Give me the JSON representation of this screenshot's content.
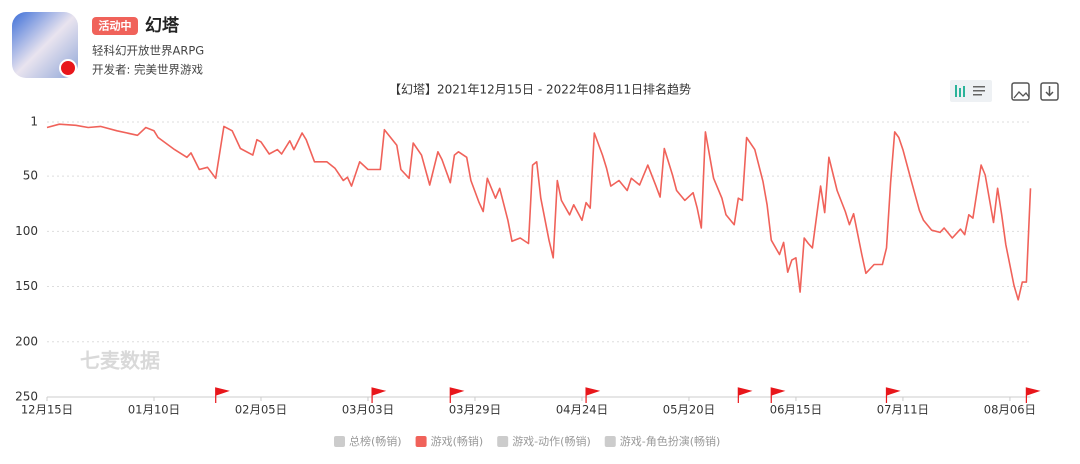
{
  "app": {
    "badge": "活动中",
    "name": "幻塔",
    "tagline": "轻科幻开放世界ARPG",
    "developer": "开发者: 完美世界游戏"
  },
  "watermark": "七麦数据",
  "chart_data": {
    "type": "line",
    "title": "【幻塔】2021年12月15日 - 2022年08月11日排名趋势",
    "x": [
      "2021-12-15",
      "2021-12-18",
      "2021-12-22",
      "2021-12-25",
      "2021-12-28",
      "2022-01-01",
      "2022-01-06",
      "2022-01-08",
      "2022-01-10",
      "2022-01-11",
      "2022-01-15",
      "2022-01-18",
      "2022-01-19",
      "2022-01-21",
      "2022-01-23",
      "2022-01-25",
      "2022-01-27",
      "2022-01-29",
      "2022-01-31",
      "2022-02-03",
      "2022-02-04",
      "2022-02-05",
      "2022-02-07",
      "2022-02-09",
      "2022-02-10",
      "2022-02-12",
      "2022-02-13",
      "2022-02-15",
      "2022-02-16",
      "2022-02-18",
      "2022-02-21",
      "2022-02-23",
      "2022-02-25",
      "2022-02-26",
      "2022-02-27",
      "2022-03-01",
      "2022-03-03",
      "2022-03-06",
      "2022-03-07",
      "2022-03-10",
      "2022-03-11",
      "2022-03-13",
      "2022-03-14",
      "2022-03-16",
      "2022-03-18",
      "2022-03-20",
      "2022-03-21",
      "2022-03-23",
      "2022-03-24",
      "2022-03-25",
      "2022-03-27",
      "2022-03-28",
      "2022-03-30",
      "2022-03-31",
      "2022-04-01",
      "2022-04-03",
      "2022-04-04",
      "2022-04-06",
      "2022-04-07",
      "2022-04-09",
      "2022-04-11",
      "2022-04-12",
      "2022-04-13",
      "2022-04-14",
      "2022-04-16",
      "2022-04-17",
      "2022-04-18",
      "2022-04-19",
      "2022-04-21",
      "2022-04-22",
      "2022-04-24",
      "2022-04-25",
      "2022-04-26",
      "2022-04-27",
      "2022-04-29",
      "2022-04-30",
      "2022-05-01",
      "2022-05-03",
      "2022-05-05",
      "2022-05-06",
      "2022-05-08",
      "2022-05-10",
      "2022-05-12",
      "2022-05-13",
      "2022-05-14",
      "2022-05-16",
      "2022-05-17",
      "2022-05-19",
      "2022-05-21",
      "2022-05-22",
      "2022-05-23",
      "2022-05-24",
      "2022-05-26",
      "2022-05-28",
      "2022-05-29",
      "2022-05-31",
      "2022-06-01",
      "2022-06-02",
      "2022-06-03",
      "2022-06-05",
      "2022-06-07",
      "2022-06-08",
      "2022-06-09",
      "2022-06-11",
      "2022-06-12",
      "2022-06-13",
      "2022-06-14",
      "2022-06-15",
      "2022-06-16",
      "2022-06-17",
      "2022-06-18",
      "2022-06-19",
      "2022-06-21",
      "2022-06-22",
      "2022-06-23",
      "2022-06-25",
      "2022-06-27",
      "2022-06-28",
      "2022-06-29",
      "2022-07-01",
      "2022-07-02",
      "2022-07-04",
      "2022-07-06",
      "2022-07-07",
      "2022-07-08",
      "2022-07-09",
      "2022-07-10",
      "2022-07-11",
      "2022-07-13",
      "2022-07-15",
      "2022-07-16",
      "2022-07-18",
      "2022-07-20",
      "2022-07-21",
      "2022-07-23",
      "2022-07-25",
      "2022-07-26",
      "2022-07-27",
      "2022-07-28",
      "2022-07-30",
      "2022-07-31",
      "2022-08-02",
      "2022-08-03",
      "2022-08-04",
      "2022-08-05",
      "2022-08-07",
      "2022-08-08",
      "2022-08-09",
      "2022-08-10",
      "2022-08-11"
    ],
    "series": [
      {
        "name": "游戏(畅销)",
        "color": "#f0625a",
        "values": [
          6,
          3,
          4,
          6,
          5,
          9,
          13,
          6,
          9,
          15,
          26,
          33,
          29,
          44,
          42,
          52,
          5,
          9,
          25,
          31,
          17,
          19,
          30,
          26,
          30,
          18,
          26,
          11,
          17,
          37,
          37,
          43,
          54,
          51,
          59,
          37,
          44,
          44,
          8,
          22,
          44,
          52,
          20,
          31,
          58,
          28,
          35,
          56,
          31,
          28,
          33,
          54,
          74,
          82,
          52,
          70,
          61,
          90,
          109,
          106,
          111,
          40,
          37,
          70,
          108,
          124,
          54,
          72,
          85,
          76,
          90,
          74,
          79,
          11,
          31,
          43,
          59,
          54,
          63,
          52,
          58,
          40,
          59,
          69,
          25,
          49,
          63,
          72,
          65,
          79,
          97,
          10,
          52,
          70,
          85,
          94,
          70,
          72,
          15,
          26,
          55,
          76,
          108,
          121,
          110,
          137,
          126,
          124,
          155,
          106,
          111,
          115,
          59,
          83,
          33,
          63,
          82,
          94,
          84,
          121,
          138,
          130,
          130,
          115,
          56,
          10,
          15,
          26,
          54,
          81,
          90,
          99,
          101,
          97,
          106,
          98,
          103,
          85,
          88,
          40,
          49,
          92,
          61,
          85,
          112,
          149,
          162,
          146,
          146,
          61
        ]
      }
    ],
    "legend": [
      {
        "name": "总榜(畅销)",
        "color": "#cccccc"
      },
      {
        "name": "游戏(畅销)",
        "color": "#f0625a"
      },
      {
        "name": "游戏-动作(畅销)",
        "color": "#cccccc"
      },
      {
        "name": "游戏-角色扮演(畅销)",
        "color": "#cccccc"
      }
    ],
    "event_dates": [
      "2022-01-25",
      "2022-03-04",
      "2022-03-23",
      "2022-04-25",
      "2022-06-01",
      "2022-06-09",
      "2022-07-07",
      "2022-08-10"
    ],
    "event_color": "#e8161b",
    "xlim": [
      "2021-12-15",
      "2022-08-11"
    ],
    "xticks": [
      {
        "value": "2021-12-15",
        "label": "12月15日"
      },
      {
        "value": "2022-01-10",
        "label": "01月10日"
      },
      {
        "value": "2022-02-05",
        "label": "02月05日"
      },
      {
        "value": "2022-03-03",
        "label": "03月03日"
      },
      {
        "value": "2022-03-29",
        "label": "03月29日"
      },
      {
        "value": "2022-04-24",
        "label": "04月24日"
      },
      {
        "value": "2022-05-20",
        "label": "05月20日"
      },
      {
        "value": "2022-06-15",
        "label": "06月15日"
      },
      {
        "value": "2022-07-11",
        "label": "07月11日"
      },
      {
        "value": "2022-08-06",
        "label": "08月06日"
      }
    ],
    "ylim": [
      250,
      1
    ],
    "yticks": [
      1,
      50,
      100,
      150,
      200,
      250
    ],
    "grid": true
  }
}
